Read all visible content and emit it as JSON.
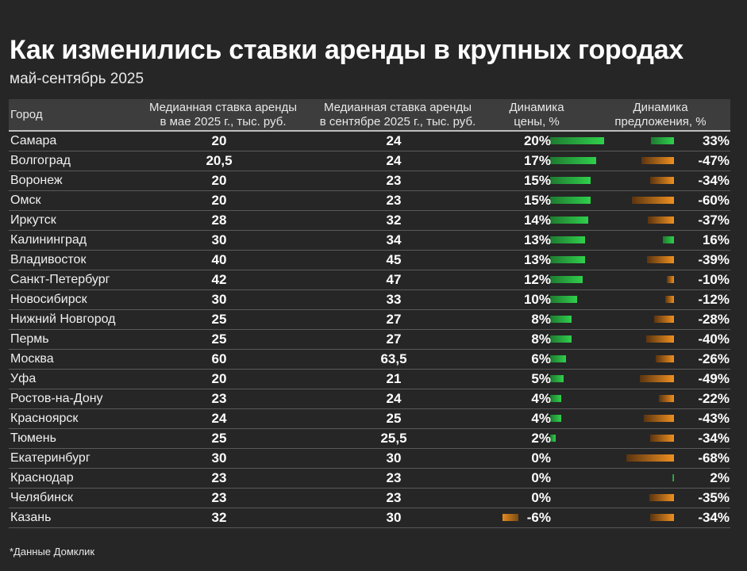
{
  "title": "Как изменились ставки аренды в крупных городах",
  "subtitle": "май-сентябрь 2025",
  "columns": {
    "city": "Город",
    "may_line1": "Медианная ставка аренды",
    "may_line2": "в мае 2025 г., тыс. руб.",
    "sep_line1": "Медианная ставка аренды",
    "sep_line2": "в сентябре 2025 г., тыс. руб.",
    "price_line1": "Динамика",
    "price_line2": "цены, %",
    "supply_line1": "Динамика",
    "supply_line2": "предложения, %"
  },
  "footnote": "*Данные Домклик",
  "colors": {
    "background": "#262626",
    "positive": "#2fd04c",
    "negative": "#f0901f"
  },
  "chart_data": {
    "type": "table",
    "rows": [
      {
        "city": "Самара",
        "may": "20",
        "sep": "24",
        "price_label": "20%",
        "price": 20,
        "supply_label": "33%",
        "supply": 33
      },
      {
        "city": "Волгоград",
        "may": "20,5",
        "sep": "24",
        "price_label": "17%",
        "price": 17,
        "supply_label": "-47%",
        "supply": -47
      },
      {
        "city": "Воронеж",
        "may": "20",
        "sep": "23",
        "price_label": "15%",
        "price": 15,
        "supply_label": "-34%",
        "supply": -34
      },
      {
        "city": "Омск",
        "may": "20",
        "sep": "23",
        "price_label": "15%",
        "price": 15,
        "supply_label": "-60%",
        "supply": -60
      },
      {
        "city": "Иркутск",
        "may": "28",
        "sep": "32",
        "price_label": "14%",
        "price": 14,
        "supply_label": "-37%",
        "supply": -37
      },
      {
        "city": "Калининград",
        "may": "30",
        "sep": "34",
        "price_label": "13%",
        "price": 13,
        "supply_label": "16%",
        "supply": 16
      },
      {
        "city": "Владивосток",
        "may": "40",
        "sep": "45",
        "price_label": "13%",
        "price": 13,
        "supply_label": "-39%",
        "supply": -39
      },
      {
        "city": "Санкт-Петербург",
        "may": "42",
        "sep": "47",
        "price_label": "12%",
        "price": 12,
        "supply_label": "-10%",
        "supply": -10
      },
      {
        "city": "Новосибирск",
        "may": "30",
        "sep": "33",
        "price_label": "10%",
        "price": 10,
        "supply_label": "-12%",
        "supply": -12
      },
      {
        "city": "Нижний Новгород",
        "may": "25",
        "sep": "27",
        "price_label": "8%",
        "price": 8,
        "supply_label": "-28%",
        "supply": -28
      },
      {
        "city": "Пермь",
        "may": "25",
        "sep": "27",
        "price_label": "8%",
        "price": 8,
        "supply_label": "-40%",
        "supply": -40
      },
      {
        "city": "Москва",
        "may": "60",
        "sep": "63,5",
        "price_label": "6%",
        "price": 6,
        "supply_label": "-26%",
        "supply": -26
      },
      {
        "city": "Уфа",
        "may": "20",
        "sep": "21",
        "price_label": "5%",
        "price": 5,
        "supply_label": "-49%",
        "supply": -49
      },
      {
        "city": "Ростов-на-Дону",
        "may": "23",
        "sep": "24",
        "price_label": "4%",
        "price": 4,
        "supply_label": "-22%",
        "supply": -22
      },
      {
        "city": "Красноярск",
        "may": "24",
        "sep": "25",
        "price_label": "4%",
        "price": 4,
        "supply_label": "-43%",
        "supply": -43
      },
      {
        "city": "Тюмень",
        "may": "25",
        "sep": "25,5",
        "price_label": "2%",
        "price": 2,
        "supply_label": "-34%",
        "supply": -34
      },
      {
        "city": "Екатеринбург",
        "may": "30",
        "sep": "30",
        "price_label": "0%",
        "price": 0,
        "supply_label": "-68%",
        "supply": -68
      },
      {
        "city": "Краснодар",
        "may": "23",
        "sep": "23",
        "price_label": "0%",
        "price": 0,
        "supply_label": "2%",
        "supply": 2
      },
      {
        "city": "Челябинск",
        "may": "23",
        "sep": "23",
        "price_label": "0%",
        "price": 0,
        "supply_label": "-35%",
        "supply": -35
      },
      {
        "city": "Казань",
        "may": "32",
        "sep": "30",
        "price_label": "-6%",
        "price": -6,
        "supply_label": "-34%",
        "supply": -34
      }
    ]
  }
}
